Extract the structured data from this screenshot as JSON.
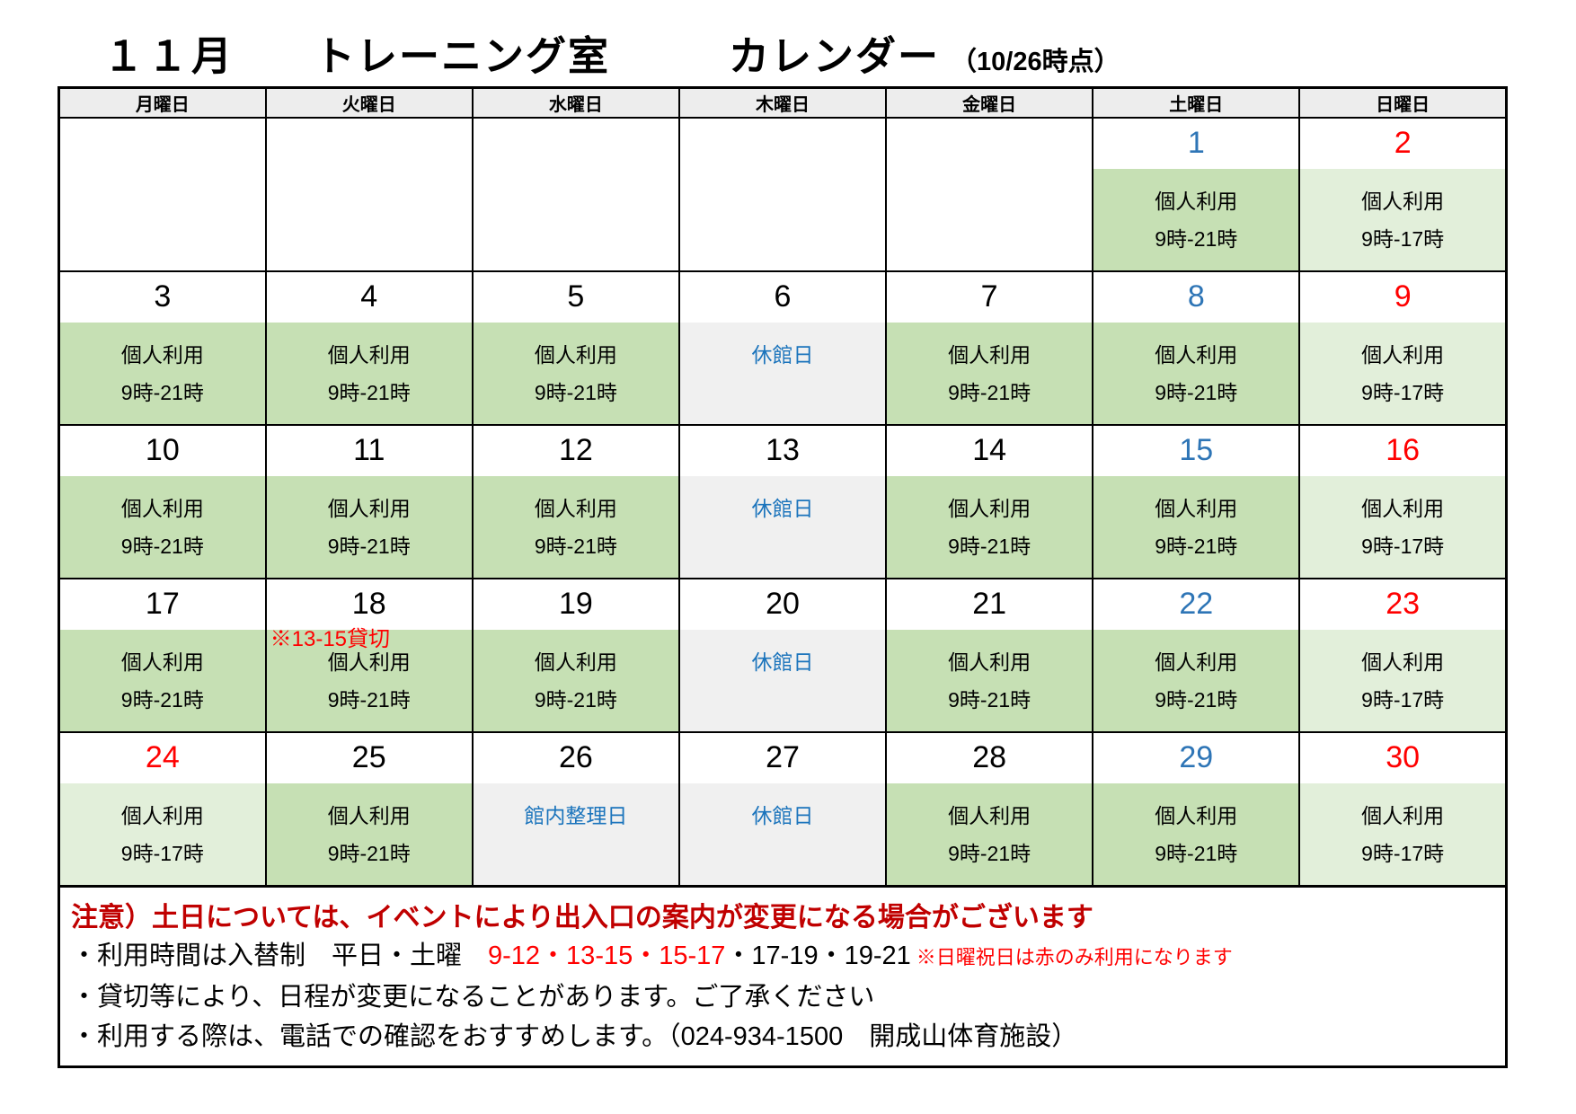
{
  "title": {
    "month": "１１月",
    "room": "トレーニング室",
    "word": "カレンダー",
    "asof": "（10/26時点）"
  },
  "weekday_headers": [
    {
      "key": "mon",
      "label": "月曜日",
      "type": "normal"
    },
    {
      "key": "tue",
      "label": "火曜日",
      "type": "normal"
    },
    {
      "key": "wed",
      "label": "水曜日",
      "type": "normal"
    },
    {
      "key": "thu",
      "label": "木曜日",
      "type": "normal"
    },
    {
      "key": "fri",
      "label": "金曜日",
      "type": "normal"
    },
    {
      "key": "sat",
      "label": "土曜日",
      "type": "sat"
    },
    {
      "key": "sun",
      "label": "日曜日",
      "type": "sun"
    }
  ],
  "weeks": [
    [
      {
        "d": "",
        "bg": "white"
      },
      {
        "d": "",
        "bg": "white"
      },
      {
        "d": "",
        "bg": "white"
      },
      {
        "d": "",
        "bg": "white"
      },
      {
        "d": "",
        "bg": "white"
      },
      {
        "d": "1",
        "dc": "blue",
        "bg": "green",
        "l1": "個人利用",
        "l2": "9時-21時"
      },
      {
        "d": "2",
        "dc": "red",
        "bg": "lgreen",
        "l1": "個人利用",
        "l2": "9時-17時"
      }
    ],
    [
      {
        "d": "3",
        "dc": "black",
        "bg": "green",
        "l1": "個人利用",
        "l2": "9時-21時"
      },
      {
        "d": "4",
        "dc": "black",
        "bg": "green",
        "l1": "個人利用",
        "l2": "9時-21時"
      },
      {
        "d": "5",
        "dc": "black",
        "bg": "green",
        "l1": "個人利用",
        "l2": "9時-21時"
      },
      {
        "d": "6",
        "dc": "black",
        "bg": "gray",
        "l1": "休館日",
        "l1c": "closed"
      },
      {
        "d": "7",
        "dc": "black",
        "bg": "green",
        "l1": "個人利用",
        "l2": "9時-21時"
      },
      {
        "d": "8",
        "dc": "blue",
        "bg": "green",
        "l1": "個人利用",
        "l2": "9時-21時"
      },
      {
        "d": "9",
        "dc": "red",
        "bg": "lgreen",
        "l1": "個人利用",
        "l2": "9時-17時"
      }
    ],
    [
      {
        "d": "10",
        "dc": "black",
        "bg": "green",
        "l1": "個人利用",
        "l2": "9時-21時"
      },
      {
        "d": "11",
        "dc": "black",
        "bg": "green",
        "l1": "個人利用",
        "l2": "9時-21時"
      },
      {
        "d": "12",
        "dc": "black",
        "bg": "green",
        "l1": "個人利用",
        "l2": "9時-21時"
      },
      {
        "d": "13",
        "dc": "black",
        "bg": "gray",
        "l1": "休館日",
        "l1c": "closed"
      },
      {
        "d": "14",
        "dc": "black",
        "bg": "green",
        "l1": "個人利用",
        "l2": "9時-21時"
      },
      {
        "d": "15",
        "dc": "blue",
        "bg": "green",
        "l1": "個人利用",
        "l2": "9時-21時"
      },
      {
        "d": "16",
        "dc": "red",
        "bg": "lgreen",
        "l1": "個人利用",
        "l2": "9時-17時"
      }
    ],
    [
      {
        "d": "17",
        "dc": "black",
        "bg": "green",
        "l1": "個人利用",
        "l2": "9時-21時"
      },
      {
        "d": "18",
        "dc": "black",
        "bg": "green",
        "note": "※13-15貸切",
        "l1": "個人利用",
        "l2": "9時-21時"
      },
      {
        "d": "19",
        "dc": "black",
        "bg": "green",
        "l1": "個人利用",
        "l2": "9時-21時"
      },
      {
        "d": "20",
        "dc": "black",
        "bg": "gray",
        "l1": "休館日",
        "l1c": "closed"
      },
      {
        "d": "21",
        "dc": "black",
        "bg": "green",
        "l1": "個人利用",
        "l2": "9時-21時"
      },
      {
        "d": "22",
        "dc": "blue",
        "bg": "green",
        "l1": "個人利用",
        "l2": "9時-21時"
      },
      {
        "d": "23",
        "dc": "red",
        "bg": "lgreen",
        "l1": "個人利用",
        "l2": "9時-17時"
      }
    ],
    [
      {
        "d": "24",
        "dc": "red",
        "bg": "lgreen",
        "l1": "個人利用",
        "l2": "9時-17時"
      },
      {
        "d": "25",
        "dc": "black",
        "bg": "green",
        "l1": "個人利用",
        "l2": "9時-21時"
      },
      {
        "d": "26",
        "dc": "black",
        "bg": "gray",
        "l1": "館内整理日",
        "l1c": "closed"
      },
      {
        "d": "27",
        "dc": "black",
        "bg": "gray",
        "l1": "休館日",
        "l1c": "closed"
      },
      {
        "d": "28",
        "dc": "black",
        "bg": "green",
        "l1": "個人利用",
        "l2": "9時-21時"
      },
      {
        "d": "29",
        "dc": "blue",
        "bg": "green",
        "l1": "個人利用",
        "l2": "9時-21時"
      },
      {
        "d": "30",
        "dc": "red",
        "bg": "lgreen",
        "l1": "個人利用",
        "l2": "9時-17時"
      }
    ]
  ],
  "notes": {
    "caution": "注意）土日については、イベントにより出入口の案内が変更になる場合がございます",
    "usage_prefix": "・利用時間は入替制　平日・土曜　",
    "usage_red": "9-12・13-15・15-17",
    "usage_black": "・17-19・19-21",
    "usage_small_note": "※日曜祝日は赤のみ利用になります",
    "line3": "・貸切等により、日程が変更になることがあります。ご了承ください",
    "line4": "・利用する際は、電話での確認をおすすめします。（024-934-1500　開成山体育施設）"
  },
  "colors": {
    "green": "#c6e0b4",
    "light_green": "#e2efda",
    "closed_gray": "#f0f0f0",
    "sat_blue": "#bdd7ee",
    "sun_orange": "#f4b183",
    "header_gray": "#ededed",
    "number_blue": "#2e75b6",
    "closed_text_blue": "#1b74bc",
    "red": "#ff0000",
    "dark_red": "#c00000"
  }
}
